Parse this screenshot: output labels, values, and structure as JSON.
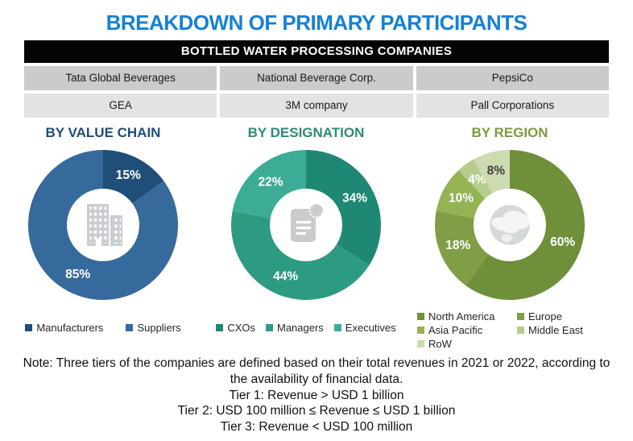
{
  "title": "BREAKDOWN OF PRIMARY PARTICIPANTS",
  "company_table": {
    "header": "BOTTLED WATER PROCESSING COMPANIES",
    "rows": [
      [
        "Tata Global Beverages",
        "National Beverage Corp.",
        "PepsiCo"
      ],
      [
        "GEA",
        "3M company",
        "Pall Corporations"
      ]
    ]
  },
  "chart_data": [
    {
      "type": "pie",
      "subtype": "donut",
      "title": "BY VALUE CHAIN",
      "title_color": "#1F4E79",
      "center_icon": "buildings-icon",
      "donut_hole_ratio": 0.48,
      "legend_position": "bottom",
      "slices": [
        {
          "label": "Manufacturers",
          "value": 15,
          "color": "#1F4E79",
          "label_color": "#FFFFFF"
        },
        {
          "label": "Suppliers",
          "value": 85,
          "color": "#36699C",
          "label_color": "#FFFFFF"
        }
      ]
    },
    {
      "type": "pie",
      "subtype": "donut",
      "title": "BY DESIGNATION",
      "title_color": "#2E8B74",
      "center_icon": "document-icon",
      "donut_hole_ratio": 0.48,
      "legend_position": "bottom",
      "slices": [
        {
          "label": "CXOs",
          "value": 34,
          "color": "#1E8874",
          "label_color": "#FFFFFF"
        },
        {
          "label": "Managers",
          "value": 44,
          "color": "#2C9B82",
          "label_color": "#FFFFFF"
        },
        {
          "label": "Executives",
          "value": 22,
          "color": "#3CAC96",
          "label_color": "#FFFFFF"
        }
      ]
    },
    {
      "type": "pie",
      "subtype": "donut",
      "title": "BY REGION",
      "title_color": "#7C9C3F",
      "center_icon": "globe-icon",
      "donut_hole_ratio": 0.48,
      "legend_position": "bottom",
      "slices": [
        {
          "label": "North America",
          "value": 60,
          "color": "#6F8F3B",
          "label_color": "#FFFFFF"
        },
        {
          "label": "Europe",
          "value": 18,
          "color": "#809E46",
          "label_color": "#FFFFFF"
        },
        {
          "label": "Asia Pacific",
          "value": 10,
          "color": "#94B454",
          "label_color": "#FFFFFF"
        },
        {
          "label": "Middle East",
          "value": 4,
          "color": "#B5CC8E",
          "label_color": "#FFFFFF"
        },
        {
          "label": "RoW",
          "value": 8,
          "color": "#CDDBB1",
          "label_color": "#3F3F3F"
        }
      ]
    }
  ],
  "note_lines": [
    "Note: Three tiers of the companies are defined based on their total revenues in 2021 or 2022, according to",
    "the availability of financial data.",
    "Tier 1: Revenue > USD 1 billion",
    "Tier 2: USD 100 million ≤ Revenue ≤ USD 1 billion",
    "Tier 3: Revenue < USD 100 million"
  ]
}
